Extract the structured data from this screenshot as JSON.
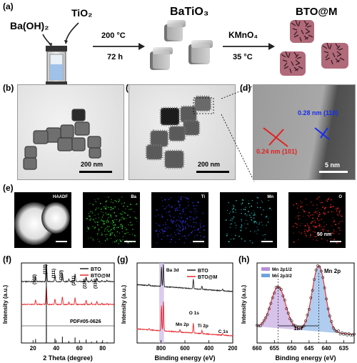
{
  "panels": {
    "a": "(a)",
    "b": "(b)",
    "c": "(c)",
    "d": "(d)",
    "e": "(e)",
    "f": "(f)",
    "g": "(g)",
    "h": "(h)"
  },
  "schematic": {
    "reagent1": "Ba(OH)₂",
    "reagent2": "TiO₂",
    "temp1": "200 °C",
    "time1": "72 h",
    "product1": "BaTiO₃",
    "reagent3": "KMnO₄",
    "temp2": "35 °C",
    "product2": "BTO@M"
  },
  "tem": {
    "b_scale": "200 nm",
    "c_scale": "200 nm",
    "d_scale": "5 nm",
    "d_fringe1": "0.28 nm (110)",
    "d_fringe2": "0.24 nm (101)"
  },
  "eds": {
    "labels": [
      "HAADF",
      "Ba",
      "Ti",
      "Mn",
      "O"
    ],
    "scale": "50 nm",
    "colors": [
      "#ffffff",
      "#2fd12f",
      "#3a3aff",
      "#2ad8d8",
      "#ff2a2a"
    ]
  },
  "chart_data": [
    {
      "panel": "f",
      "type": "line",
      "xlabel": "2 Theta (degree)",
      "ylabel": "Intensity (a.u.)",
      "xlim": [
        10,
        90
      ],
      "xticks": [
        20,
        40,
        60,
        80
      ],
      "series": [
        {
          "name": "BTO",
          "color": "#222222"
        },
        {
          "name": "BTO@M",
          "color": "#e8262b"
        }
      ],
      "reference": "PDF#05-0626",
      "peak_labels": [
        {
          "label": "(100)",
          "x": 22.2
        },
        {
          "label": "(110)",
          "x": 31.5
        },
        {
          "label": "(111)",
          "x": 38.9
        },
        {
          "label": "(200)",
          "x": 45.3
        },
        {
          "label": "(211)",
          "x": 56.2
        },
        {
          "label": "(220)",
          "x": 65.8
        },
        {
          "label": "(310)",
          "x": 75.0
        }
      ],
      "reference_peaks": [
        {
          "x": 22.2,
          "h": 0.25
        },
        {
          "x": 31.5,
          "h": 1.0
        },
        {
          "x": 38.9,
          "h": 0.28
        },
        {
          "x": 45.3,
          "h": 0.4
        },
        {
          "x": 50.9,
          "h": 0.12
        },
        {
          "x": 56.2,
          "h": 0.35
        },
        {
          "x": 65.8,
          "h": 0.22
        },
        {
          "x": 70.4,
          "h": 0.08
        },
        {
          "x": 75.0,
          "h": 0.15
        },
        {
          "x": 79.4,
          "h": 0.06
        },
        {
          "x": 83.8,
          "h": 0.05
        }
      ]
    },
    {
      "panel": "g",
      "type": "line",
      "xlabel": "Binding energy (eV)",
      "ylabel": "Intensity (a.u.)",
      "xlim": [
        1000,
        200
      ],
      "xticks": [
        800,
        600,
        400,
        200
      ],
      "series": [
        {
          "name": "BTO",
          "color": "#222222"
        },
        {
          "name": "BTO@M",
          "color": "#e8262b"
        }
      ],
      "annotations": [
        {
          "label": "Ba 3d",
          "x": 780
        },
        {
          "label": "Mn 2p",
          "x": 642
        },
        {
          "label": "O 1s",
          "x": 530
        },
        {
          "label": "Ti 2p",
          "x": 458
        },
        {
          "label": "C 1s",
          "x": 285
        }
      ],
      "shaded_region": [
        815,
        775
      ]
    },
    {
      "panel": "h",
      "type": "line",
      "title": "Mn 2p",
      "xlabel": "Binding energy (eV)",
      "ylabel": "Intensity (a.u.)",
      "xlim": [
        660,
        632
      ],
      "xticks": [
        660,
        655,
        650,
        645,
        640,
        635
      ],
      "peaks": [
        {
          "name": "Mn 2p1/2",
          "x": 653.9,
          "color": "#b58fd9"
        },
        {
          "name": "Mn 2p3/2",
          "x": 642.2,
          "color": "#6fa3e0"
        }
      ],
      "splitting": "11.7"
    }
  ]
}
